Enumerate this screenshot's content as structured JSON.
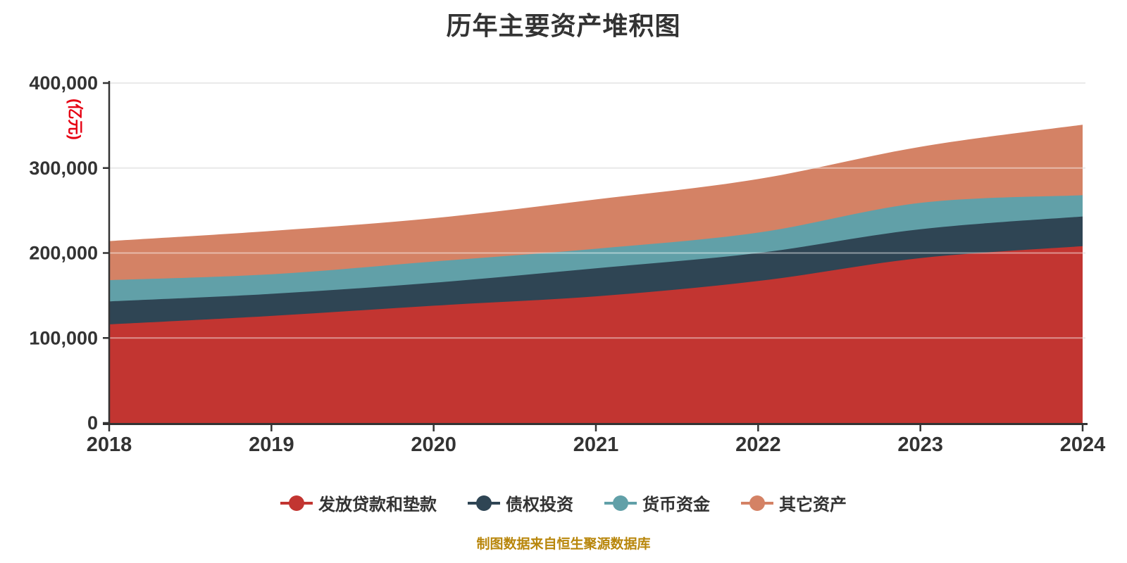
{
  "title": "历年主要资产堆积图",
  "footer": "制图数据来自恒生聚源数据库",
  "y_axis": {
    "unit": "(亿元)",
    "unit_color": "#e60012",
    "tick_labels": [
      "0",
      "100,000",
      "200,000",
      "300,000",
      "400,000"
    ],
    "min": 0,
    "max": 400000
  },
  "x_axis": {
    "labels": [
      "2018",
      "2019",
      "2020",
      "2021",
      "2022",
      "2023",
      "2024"
    ]
  },
  "legend": {
    "items": [
      {
        "id": "loans_and_advances",
        "label": "发放贷款和垫款",
        "color": "#c23531"
      },
      {
        "id": "debt_investment",
        "label": "债权投资",
        "color": "#2f4554"
      },
      {
        "id": "monetary_funds",
        "label": "货币资金",
        "color": "#61a0a8"
      },
      {
        "id": "other_assets",
        "label": "其它资产",
        "color": "#d48265"
      }
    ]
  },
  "chart_data": {
    "type": "area",
    "stacked": true,
    "smooth": true,
    "title": "历年主要资产堆积图",
    "ylabel": "(亿元)",
    "ylim": [
      0,
      400000
    ],
    "grid": true,
    "legend_position": "bottom",
    "x": [
      2018,
      2019,
      2020,
      2021,
      2022,
      2023,
      2024
    ],
    "series": [
      {
        "name": "发放贷款和垫款",
        "color": "#c23531",
        "values": [
          116000,
          126000,
          138000,
          149000,
          167000,
          194000,
          208000
        ]
      },
      {
        "name": "债权投资",
        "color": "#2f4554",
        "values": [
          27000,
          26000,
          27000,
          33000,
          33000,
          34000,
          35000
        ]
      },
      {
        "name": "货币资金",
        "color": "#61a0a8",
        "values": [
          25000,
          23000,
          25000,
          23000,
          24000,
          31000,
          25000
        ]
      },
      {
        "name": "其它资产",
        "color": "#d48265",
        "values": [
          46000,
          51000,
          51000,
          58000,
          63000,
          66000,
          83000
        ]
      }
    ],
    "stack_totals": [
      214000,
      226000,
      241000,
      263000,
      287000,
      325000,
      351000
    ]
  },
  "colors": {
    "axis": "#333333",
    "tick_label": "#333333",
    "gridline": "#d9d9d9",
    "background": "#ffffff"
  }
}
